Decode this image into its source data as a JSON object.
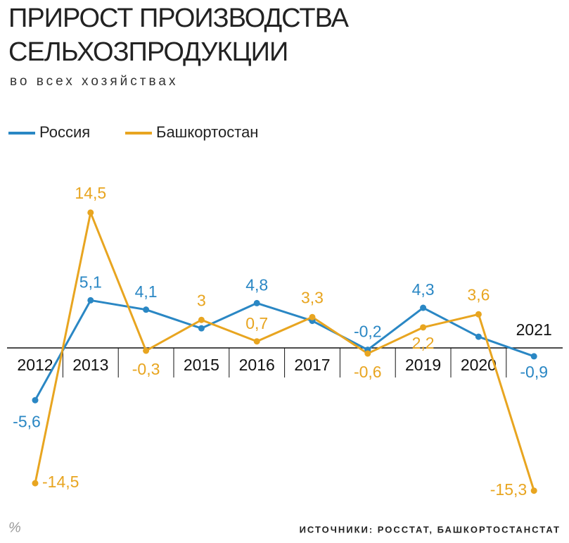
{
  "chart_data": {
    "type": "line",
    "title": [
      "ПРИРОСТ ПРОИЗВОДСТВА",
      "СЕЛЬХОЗПРОДУКЦИИ"
    ],
    "subtitle": "во всех хозяйствах",
    "unit": "%",
    "source": "ИСТОЧНИКИ: РОССТАТ, БАШКОРТОСТАНСТАТ",
    "categories": [
      "2012",
      "2013",
      null,
      "2015",
      "2016",
      "2017",
      null,
      "2019",
      "2020",
      "2021"
    ],
    "ylim": [
      -16,
      16
    ],
    "series": [
      {
        "name": "Россия",
        "color": "#2a87c4",
        "values": [
          -5.6,
          5.1,
          4.1,
          2.1,
          4.8,
          2.9,
          -0.2,
          4.3,
          1.2,
          -0.9
        ],
        "value_labels": [
          "-5,6",
          "5,1",
          "4,1",
          null,
          "4,8",
          null,
          "-0,2",
          "4,3",
          null,
          "-0,9"
        ]
      },
      {
        "name": "Башкортостан",
        "color": "#e8a520",
        "values": [
          -14.5,
          14.5,
          -0.3,
          3,
          0.7,
          3.3,
          -0.6,
          2.2,
          3.6,
          -15.3
        ],
        "value_labels": [
          "-14,5",
          "14,5",
          "-0,3",
          "3",
          "0,7",
          "3,3",
          "-0,6",
          "2,2",
          "3,6",
          "-15,3"
        ]
      }
    ]
  }
}
